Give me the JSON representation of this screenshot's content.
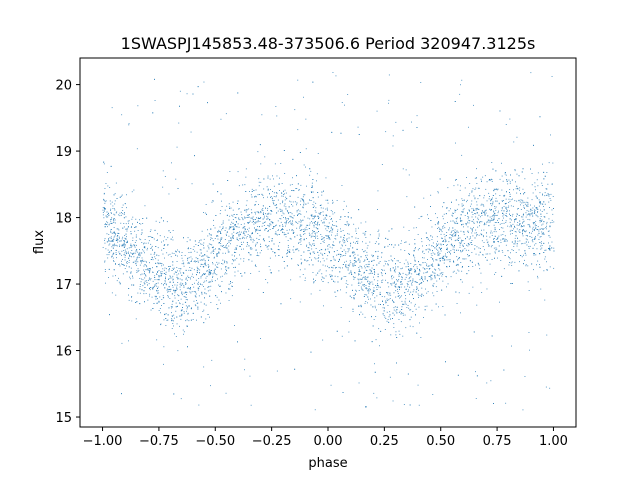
{
  "chart_data": {
    "type": "scatter",
    "title": "1SWASPJ145853.48-373506.6 Period 320947.3125s",
    "xlabel": "phase",
    "ylabel": "flux",
    "xlim": [
      -1.1,
      1.1
    ],
    "ylim": [
      14.85,
      20.4
    ],
    "x_ticks": [
      -1.0,
      -0.75,
      -0.5,
      -0.25,
      0.0,
      0.25,
      0.5,
      0.75,
      1.0
    ],
    "x_tick_labels": [
      "−1.00",
      "−0.75",
      "−0.50",
      "−0.25",
      "0.00",
      "0.25",
      "0.50",
      "0.75",
      "1.00"
    ],
    "y_ticks": [
      15,
      16,
      17,
      18,
      19,
      20
    ],
    "y_tick_labels": [
      "15",
      "16",
      "17",
      "18",
      "19",
      "20"
    ],
    "series": [
      {
        "marker_color": "#1f77b4",
        "phase_range": [
          -1.0,
          1.0
        ],
        "x": [
          -1.0,
          -0.95,
          -0.9,
          -0.85,
          -0.8,
          -0.75,
          -0.7,
          -0.65,
          -0.6,
          -0.55,
          -0.5,
          -0.45,
          -0.4,
          -0.35,
          -0.3,
          -0.25,
          -0.2,
          -0.15,
          -0.1,
          -0.05,
          0.0,
          0.05,
          0.1,
          0.15,
          0.2,
          0.25,
          0.3,
          0.35,
          0.4,
          0.45,
          0.5,
          0.55,
          0.6,
          0.65,
          0.7,
          0.75,
          0.8,
          0.85,
          0.9,
          0.95,
          1.0
        ],
        "y_median": [
          17.85,
          17.75,
          17.6,
          17.45,
          17.3,
          17.15,
          17.0,
          16.95,
          17.05,
          17.2,
          17.4,
          17.6,
          17.75,
          17.85,
          17.95,
          18.0,
          18.0,
          17.95,
          17.9,
          17.8,
          17.65,
          17.5,
          17.35,
          17.2,
          17.05,
          16.95,
          17.0,
          17.1,
          17.2,
          17.35,
          17.5,
          17.65,
          17.8,
          17.9,
          17.95,
          18.0,
          17.95,
          17.9,
          17.9,
          17.85,
          17.85
        ],
        "y_spread": 0.35,
        "outlier_range": [
          15.1,
          20.2
        ]
      }
    ],
    "grid": false,
    "legend": "none"
  }
}
